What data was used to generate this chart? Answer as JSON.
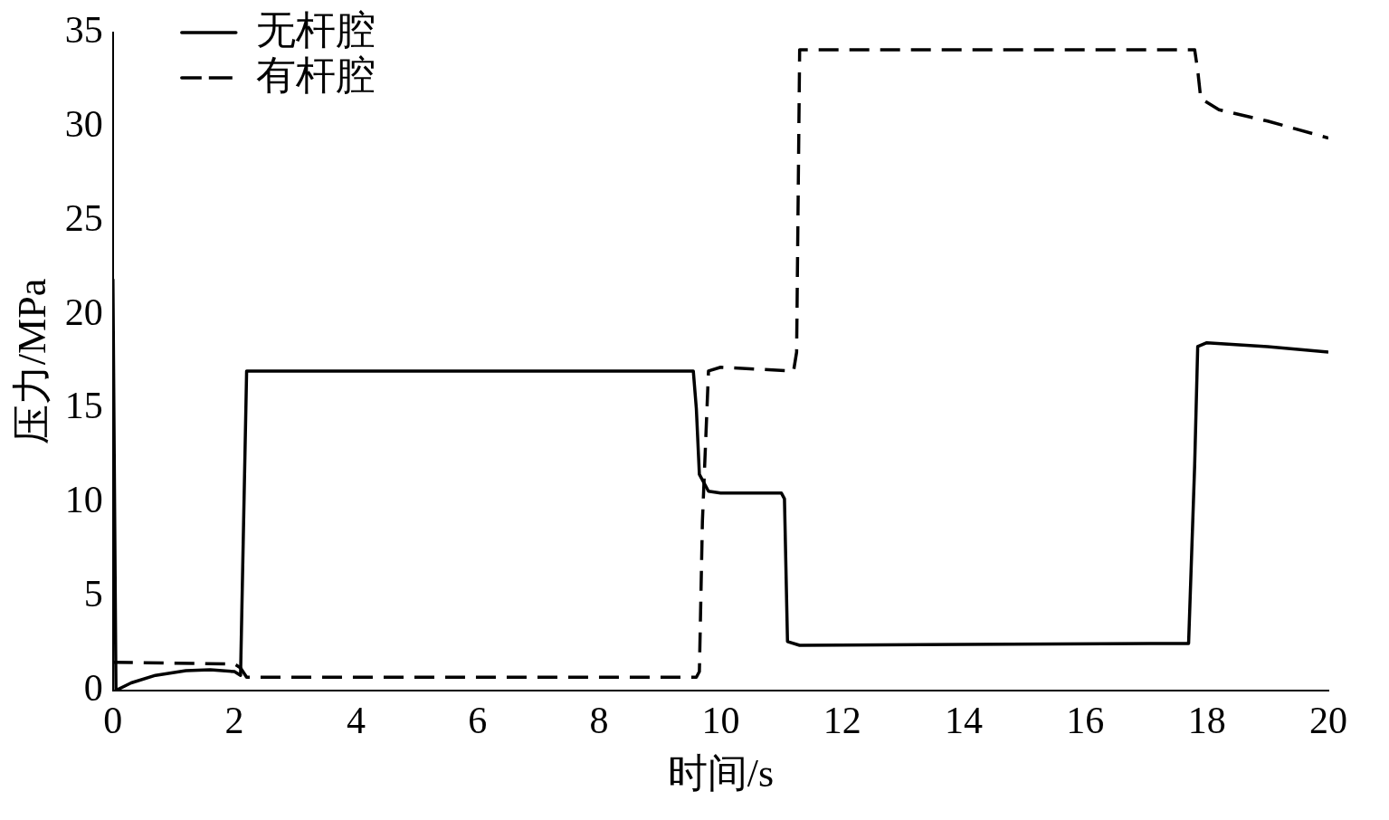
{
  "chart_data": {
    "type": "line",
    "xlabel": "时间/s",
    "ylabel": "压力/MPa",
    "xlim": [
      0,
      20
    ],
    "ylim": [
      0,
      35
    ],
    "xticks": [
      0,
      2,
      4,
      6,
      8,
      10,
      12,
      14,
      16,
      18,
      20
    ],
    "yticks": [
      0,
      5,
      10,
      15,
      20,
      25,
      30,
      35
    ],
    "grid": false,
    "legend": "top left",
    "marker": "none",
    "series": [
      {
        "name": "无杆腔",
        "color": "#000000",
        "line_style": "solid",
        "x": [
          0,
          0.05,
          0.3,
          0.7,
          1.2,
          1.6,
          2.0,
          2.1,
          2.2,
          5,
          9.55,
          9.6,
          9.65,
          9.8,
          10,
          11.0,
          11.05,
          11.1,
          11.3,
          14,
          17.7,
          17.8,
          17.85,
          18.0,
          19,
          20
        ],
        "values": [
          21.9,
          0,
          0.4,
          0.8,
          1.05,
          1.1,
          1.0,
          0.8,
          17,
          17,
          17,
          15,
          11.5,
          10.6,
          10.5,
          10.5,
          10.2,
          2.6,
          2.4,
          2.45,
          2.5,
          12,
          18.3,
          18.5,
          18.3,
          18.0
        ]
      },
      {
        "name": "有杆腔",
        "color": "#000000",
        "line_style": "dashed",
        "x": [
          0,
          2.0,
          2.1,
          2.2,
          5,
          9.6,
          9.65,
          9.7,
          9.8,
          10,
          11.2,
          11.25,
          11.3,
          14,
          17.8,
          17.85,
          17.9,
          18.2,
          19,
          20
        ],
        "values": [
          1.5,
          1.4,
          1.2,
          0.7,
          0.7,
          0.7,
          1,
          9,
          17,
          17.2,
          17.0,
          18,
          34.1,
          34.1,
          34.1,
          33,
          31.5,
          30.9,
          30.3,
          29.4
        ]
      }
    ]
  }
}
